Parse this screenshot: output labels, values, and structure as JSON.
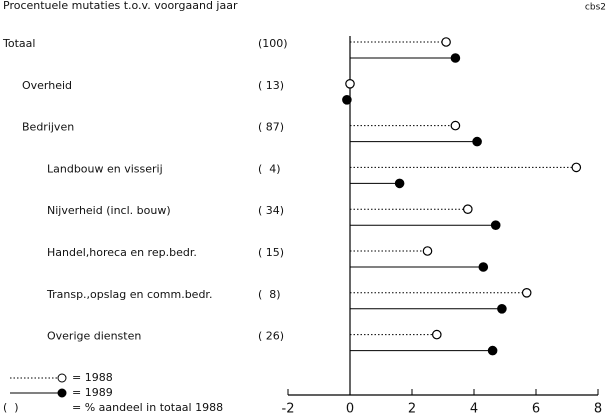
{
  "chart_data": {
    "type": "lollipop",
    "subtitle": "Procentuele mutaties t.o.v. voorgaand jaar",
    "source": "cbs2",
    "categories": [
      "Totaal",
      "Overheid",
      "Bedrijven",
      "Landbouw en visserij",
      "Nijverheid (incl. bouw)",
      "Handel,horeca en rep.bedr.",
      "Transp.,opslag en comm.bedr.",
      "Overige diensten"
    ],
    "shares": [
      "(100)",
      "( 13)",
      "( 87)",
      "(  4)",
      "( 34)",
      "( 15)",
      "(  8)",
      "( 26)"
    ],
    "series": [
      {
        "name": "= 1988",
        "color": "#000000",
        "marker": "open",
        "values": [
          3.1,
          0,
          3.4,
          7.3,
          3.8,
          2.5,
          5.7,
          2.8
        ]
      },
      {
        "name": "= 1989",
        "color": "#000000",
        "marker": "filled",
        "values": [
          3.4,
          -0.1,
          4.1,
          1.6,
          4.7,
          4.3,
          4.9,
          4.6
        ]
      }
    ],
    "share_legend": {
      "symbol": "(  )",
      "text": "= % aandeel in totaal 1988"
    },
    "xlim": [
      -2,
      8
    ],
    "xticks": [
      -2,
      0,
      2,
      4,
      6,
      8
    ]
  }
}
